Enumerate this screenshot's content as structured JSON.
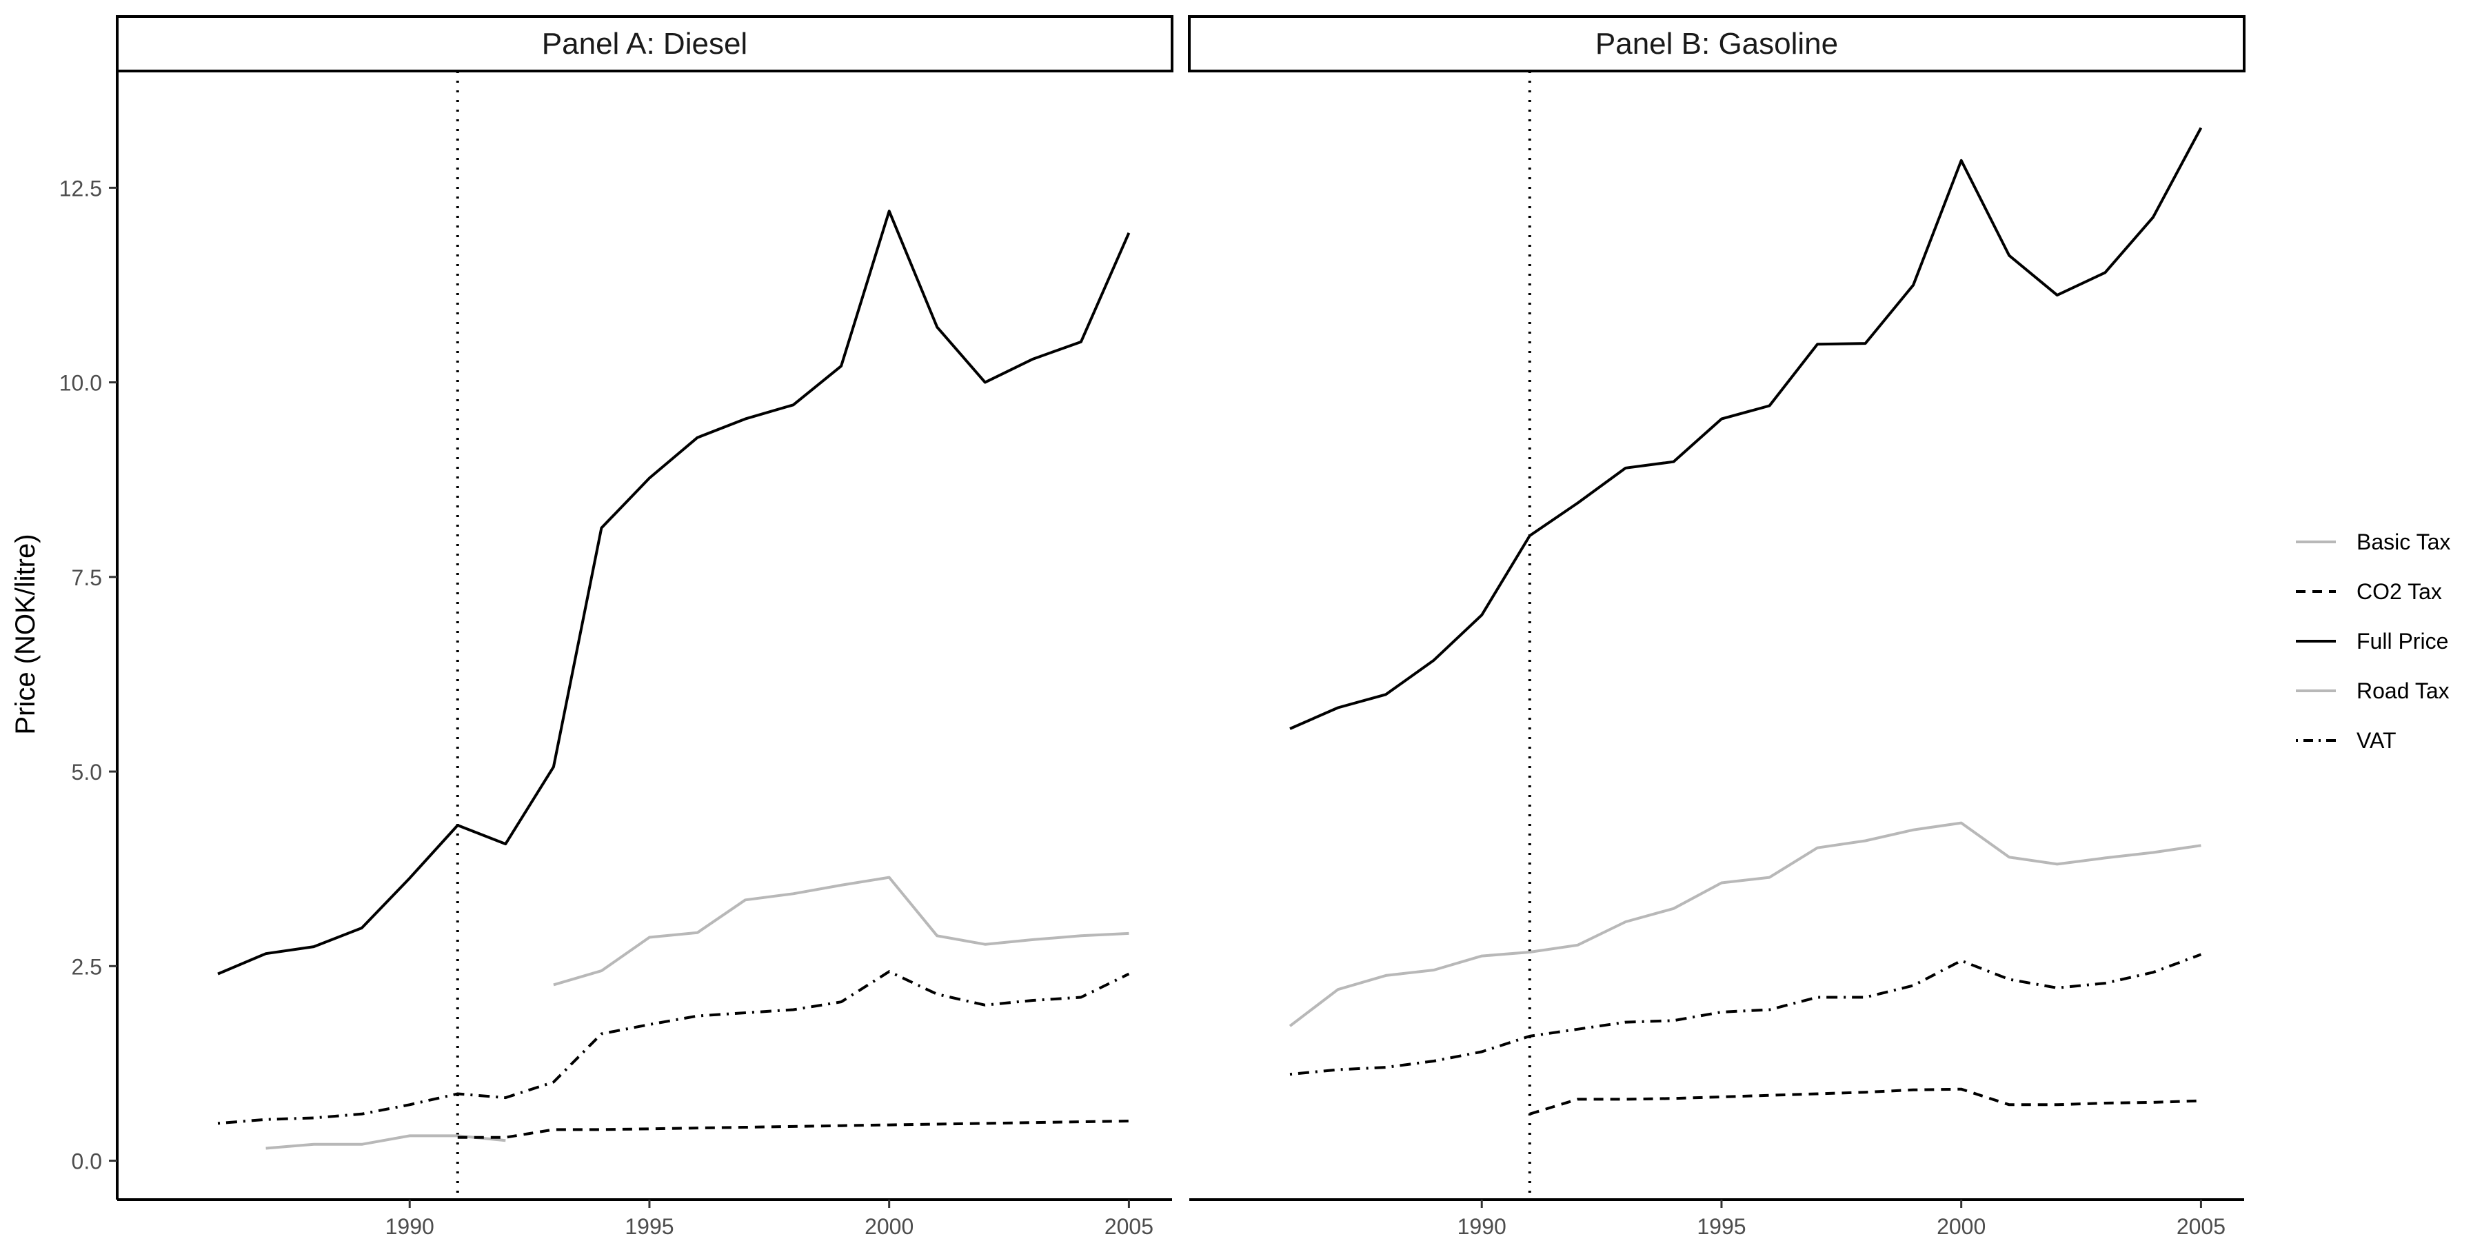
{
  "chart_data": {
    "type": "line",
    "y_axis_label": "Price (NOK/litre)",
    "x_ticks": [
      1990,
      1995,
      2000,
      2005
    ],
    "y_ticks": [
      0.0,
      2.5,
      5.0,
      7.5,
      10.0,
      12.5
    ],
    "y_tick_labels": [
      "0.0",
      "2.5",
      "5.0",
      "7.5",
      "10.0",
      "12.5"
    ],
    "x_tick_labels": [
      "1990",
      "1995",
      "2000",
      "2005"
    ],
    "xlim": [
      1983.9,
      2005.9
    ],
    "ylim": [
      -0.5,
      14.0
    ],
    "policy_line_year": 1991,
    "legend_position": "right",
    "legend": [
      {
        "key": "basic",
        "label": "Basic Tax",
        "color": "#b8b8b8",
        "dash": "solid"
      },
      {
        "key": "co2",
        "label": "CO2 Tax",
        "color": "#000000",
        "dash": "dashed"
      },
      {
        "key": "full",
        "label": "Full Price",
        "color": "#000000",
        "dash": "solid"
      },
      {
        "key": "road",
        "label": "Road Tax",
        "color": "#b8b8b8",
        "dash": "solid"
      },
      {
        "key": "vat",
        "label": "VAT",
        "color": "#000000",
        "dash": "dotdash"
      }
    ],
    "panels": [
      {
        "title": "Panel A: Diesel",
        "series": [
          {
            "key": "full",
            "name": "Full Price",
            "x": [
              1986,
              1987,
              1988,
              1989,
              1990,
              1991,
              1992,
              1993,
              1994,
              1995,
              1996,
              1997,
              1998,
              1999,
              2000,
              2001,
              2002,
              2003,
              2004,
              2005
            ],
            "y": [
              2.4,
              2.66,
              2.75,
              2.99,
              3.63,
              4.31,
              4.07,
              5.06,
              8.13,
              8.77,
              9.29,
              9.53,
              9.71,
              10.21,
              12.2,
              10.71,
              10.0,
              10.3,
              10.52,
              11.92
            ]
          },
          {
            "key": "road",
            "name": "Road Tax",
            "x": [
              1993,
              1994,
              1995,
              1996,
              1997,
              1998,
              1999,
              2000,
              2001,
              2002,
              2003,
              2004,
              2005
            ],
            "y": [
              2.26,
              2.44,
              2.87,
              2.93,
              3.35,
              3.43,
              3.54,
              3.64,
              2.89,
              2.78,
              2.84,
              2.89,
              2.92
            ]
          },
          {
            "key": "basic",
            "name": "Basic Tax",
            "x": [
              1987,
              1988,
              1989,
              1990,
              1991,
              1992
            ],
            "y": [
              0.16,
              0.21,
              0.21,
              0.32,
              0.32,
              0.26
            ]
          },
          {
            "key": "co2",
            "name": "CO2 Tax",
            "x": [
              1991,
              1992,
              1993,
              1994,
              1995,
              1996,
              1997,
              1998,
              1999,
              2000,
              2001,
              2002,
              2003,
              2004,
              2005
            ],
            "y": [
              0.3,
              0.3,
              0.4,
              0.4,
              0.41,
              0.42,
              0.43,
              0.44,
              0.45,
              0.46,
              0.47,
              0.48,
              0.49,
              0.5,
              0.51
            ]
          },
          {
            "key": "vat",
            "name": "VAT",
            "x": [
              1986,
              1987,
              1988,
              1989,
              1990,
              1991,
              1992,
              1993,
              1994,
              1995,
              1996,
              1997,
              1998,
              1999,
              2000,
              2001,
              2002,
              2003,
              2004,
              2005
            ],
            "y": [
              0.48,
              0.53,
              0.55,
              0.6,
              0.72,
              0.86,
              0.81,
              1.01,
              1.63,
              1.75,
              1.86,
              1.9,
              1.94,
              2.04,
              2.43,
              2.14,
              2.0,
              2.06,
              2.1,
              2.4
            ]
          }
        ]
      },
      {
        "title": "Panel B: Gasoline",
        "series": [
          {
            "key": "full",
            "name": "Full Price",
            "x": [
              1986,
              1987,
              1988,
              1989,
              1990,
              1991,
              1992,
              1993,
              1994,
              1995,
              1996,
              1997,
              1998,
              1999,
              2000,
              2001,
              2002,
              2003,
              2004,
              2005
            ],
            "y": [
              5.55,
              5.82,
              5.99,
              6.43,
              7.01,
              8.03,
              8.45,
              8.9,
              8.98,
              9.53,
              9.7,
              10.49,
              10.5,
              11.25,
              12.85,
              11.63,
              11.12,
              11.41,
              12.12,
              13.27
            ]
          },
          {
            "key": "road",
            "name": "Road Tax",
            "x": [
              1986,
              1987,
              1988,
              1989,
              1990,
              1991,
              1992,
              1993,
              1994,
              1995,
              1996,
              1997,
              1998,
              1999,
              2000,
              2001,
              2002,
              2003,
              2004,
              2005
            ],
            "y": [
              1.73,
              2.2,
              2.38,
              2.45,
              2.63,
              2.68,
              2.77,
              3.07,
              3.24,
              3.57,
              3.64,
              4.02,
              4.11,
              4.25,
              4.34,
              3.9,
              3.81,
              3.89,
              3.96,
              4.05
            ]
          },
          {
            "key": "co2",
            "name": "CO2 Tax",
            "x": [
              1991,
              1992,
              1993,
              1994,
              1995,
              1996,
              1997,
              1998,
              1999,
              2000,
              2001,
              2002,
              2003,
              2004,
              2005
            ],
            "y": [
              0.6,
              0.79,
              0.79,
              0.8,
              0.82,
              0.84,
              0.86,
              0.88,
              0.91,
              0.92,
              0.72,
              0.72,
              0.74,
              0.75,
              0.77
            ]
          },
          {
            "key": "vat",
            "name": "VAT",
            "x": [
              1986,
              1987,
              1988,
              1989,
              1990,
              1991,
              1992,
              1993,
              1994,
              1995,
              1996,
              1997,
              1998,
              1999,
              2000,
              2001,
              2002,
              2003,
              2004,
              2005
            ],
            "y": [
              1.11,
              1.17,
              1.2,
              1.28,
              1.4,
              1.6,
              1.69,
              1.78,
              1.8,
              1.91,
              1.94,
              2.1,
              2.1,
              2.25,
              2.57,
              2.33,
              2.22,
              2.28,
              2.42,
              2.65
            ]
          }
        ]
      }
    ]
  }
}
